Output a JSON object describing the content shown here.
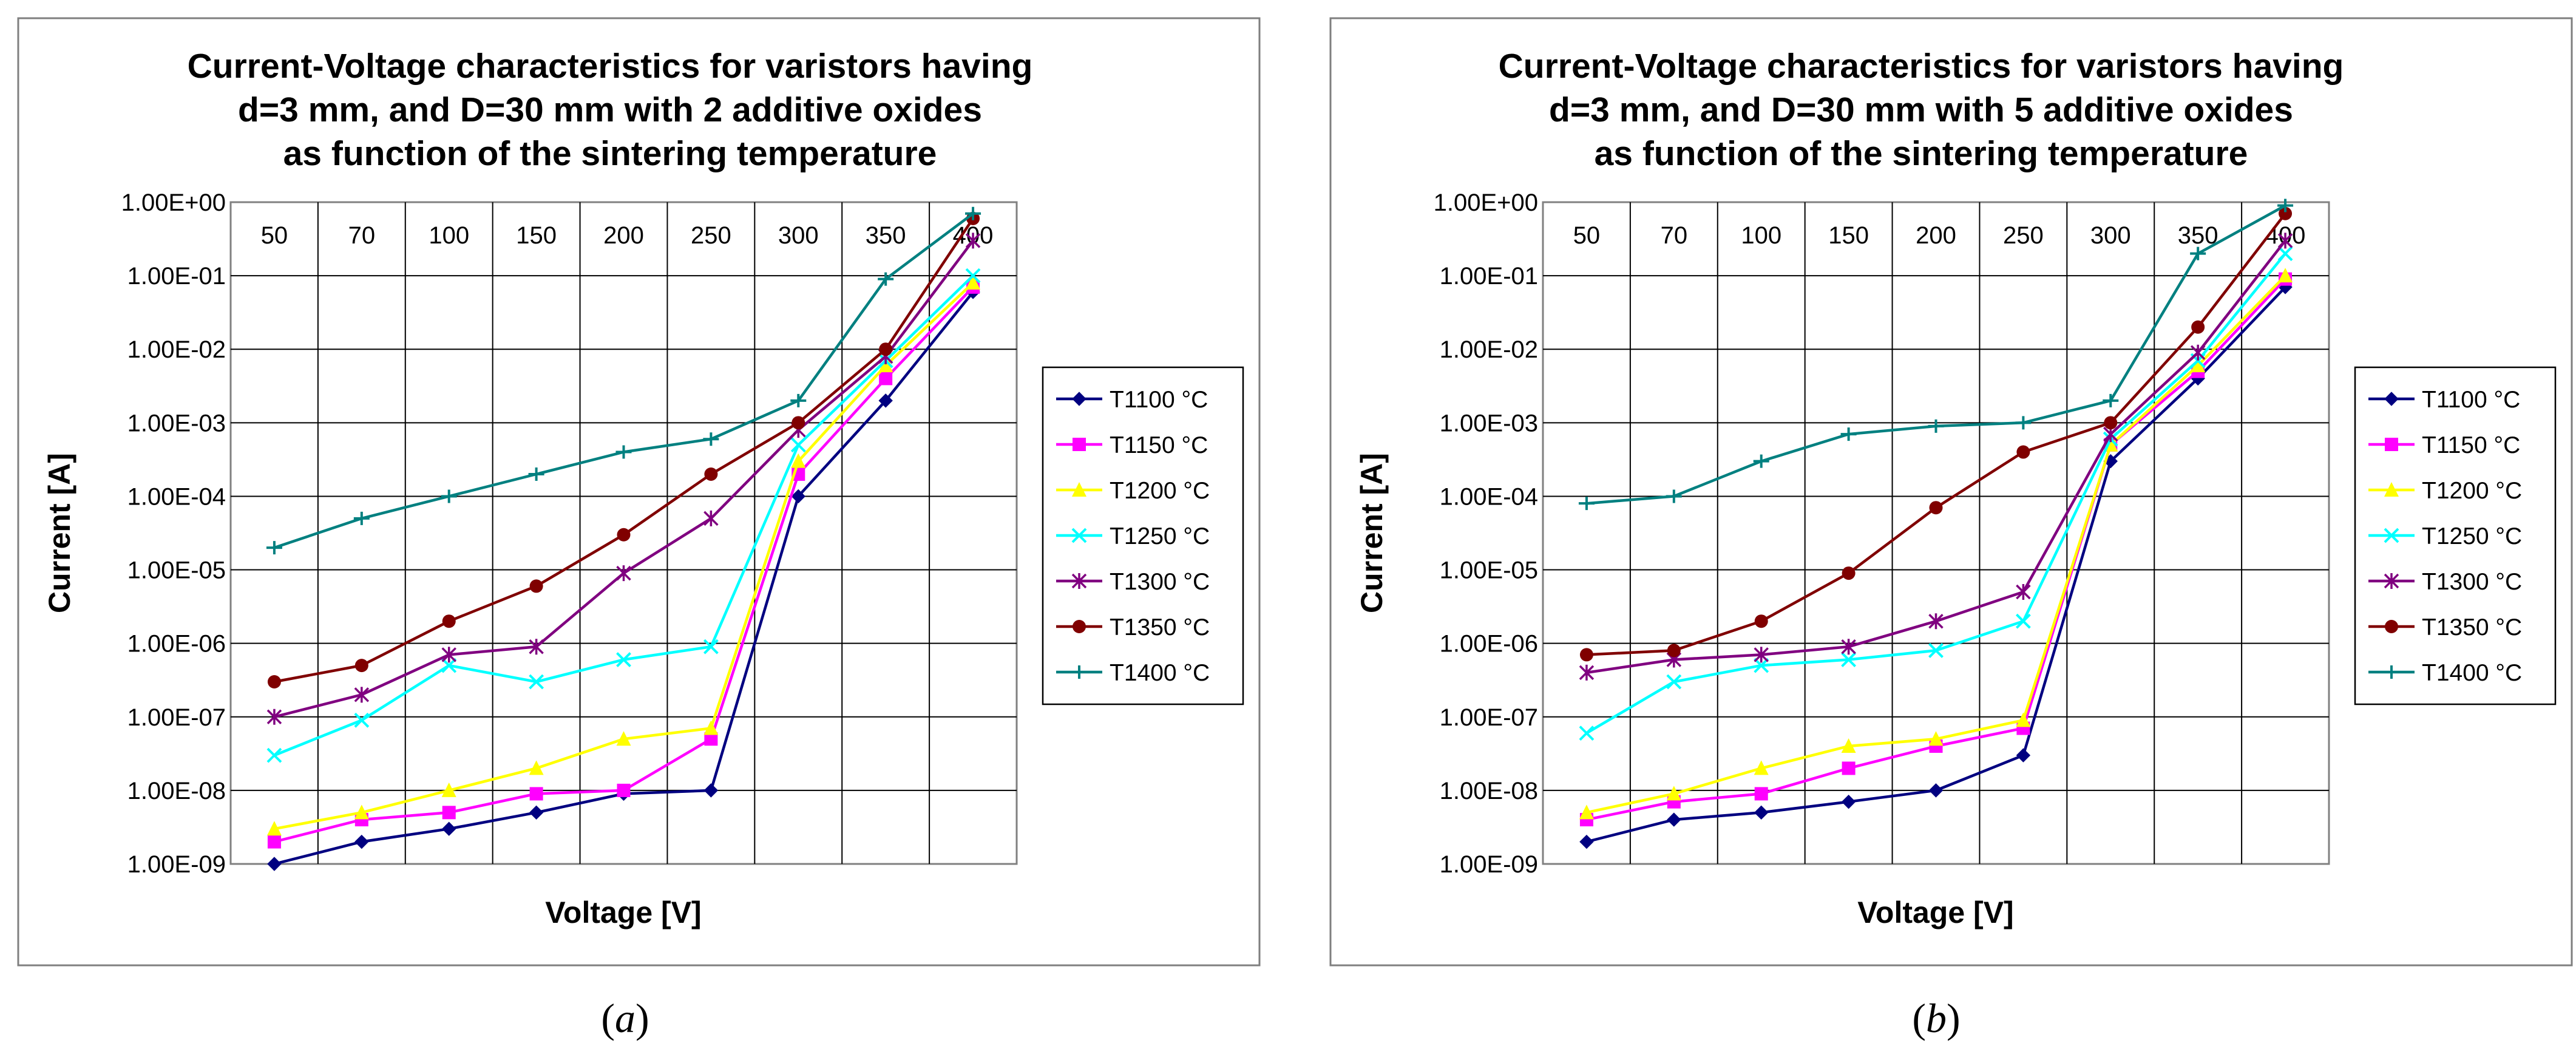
{
  "panels": [
    {
      "caption_open": "(",
      "caption_letter": "a",
      "caption_close": ")",
      "chart_data": {
        "type": "line",
        "y_scale": "log",
        "title_lines": [
          "Current-Voltage characteristics for varistors having",
          "d=3 mm, and D=30 mm with 2 additive oxides",
          "as function of the sintering temperature"
        ],
        "xlabel": "Voltage [V]",
        "ylabel": "Current [A]",
        "categories": [
          "50",
          "70",
          "100",
          "150",
          "200",
          "250",
          "300",
          "350",
          "400"
        ],
        "ytick_labels": [
          "1.00E+00",
          "1.00E-01",
          "1.00E-02",
          "1.00E-03",
          "1.00E-04",
          "1.00E-05",
          "1.00E-06",
          "1.00E-07",
          "1.00E-08",
          "1.00E-09"
        ],
        "ylim": [
          1e-09,
          1
        ],
        "legend_position": "right",
        "series": [
          {
            "name": "T1100 °C",
            "color": "#000080",
            "marker": "diamond",
            "values": [
              1e-09,
              2e-09,
              3e-09,
              5e-09,
              9e-09,
              1e-08,
              0.0001,
              0.002,
              0.06
            ]
          },
          {
            "name": "T1150 °C",
            "color": "#FF00FF",
            "marker": "square",
            "values": [
              2e-09,
              4e-09,
              5e-09,
              9e-09,
              1e-08,
              5e-08,
              0.0002,
              0.004,
              0.07
            ]
          },
          {
            "name": "T1200 °C",
            "color": "#FFFF00",
            "marker": "triangle",
            "values": [
              3e-09,
              5e-09,
              1e-08,
              2e-08,
              5e-08,
              7e-08,
              0.0003,
              0.006,
              0.08
            ]
          },
          {
            "name": "T1250 °C",
            "color": "#00FFFF",
            "marker": "x",
            "values": [
              3e-08,
              9e-08,
              5e-07,
              3e-07,
              6e-07,
              9e-07,
              0.0005,
              0.007,
              0.1
            ]
          },
          {
            "name": "T1300 °C",
            "color": "#800080",
            "marker": "star",
            "values": [
              1e-07,
              2e-07,
              7e-07,
              9e-07,
              9e-06,
              5e-05,
              0.0008,
              0.008,
              0.3
            ]
          },
          {
            "name": "T1350 °C",
            "color": "#800000",
            "marker": "circle",
            "values": [
              3e-07,
              5e-07,
              2e-06,
              6e-06,
              3e-05,
              0.0002,
              0.001,
              0.01,
              0.6
            ]
          },
          {
            "name": "T1400 °C",
            "color": "#008080",
            "marker": "plus",
            "values": [
              2e-05,
              5e-05,
              0.0001,
              0.0002,
              0.0004,
              0.0006,
              0.002,
              0.09,
              0.7
            ]
          }
        ]
      }
    },
    {
      "caption_open": "(",
      "caption_letter": "b",
      "caption_close": ")",
      "chart_data": {
        "type": "line",
        "y_scale": "log",
        "title_lines": [
          "Current-Voltage characteristics for varistors having",
          "d=3 mm, and D=30 mm with 5 additive oxides",
          "as function of the sintering temperature"
        ],
        "xlabel": "Voltage [V]",
        "ylabel": "Current [A]",
        "categories": [
          "50",
          "70",
          "100",
          "150",
          "200",
          "250",
          "300",
          "350",
          "400"
        ],
        "ytick_labels": [
          "1.00E+00",
          "1.00E-01",
          "1.00E-02",
          "1.00E-03",
          "1.00E-04",
          "1.00E-05",
          "1.00E-06",
          "1.00E-07",
          "1.00E-08",
          "1.00E-09"
        ],
        "ylim": [
          1e-09,
          1
        ],
        "legend_position": "right",
        "series": [
          {
            "name": "T1100 °C",
            "color": "#000080",
            "marker": "diamond",
            "values": [
              2e-09,
              4e-09,
              5e-09,
              7e-09,
              1e-08,
              3e-08,
              0.0003,
              0.004,
              0.07
            ]
          },
          {
            "name": "T1150 °C",
            "color": "#FF00FF",
            "marker": "square",
            "values": [
              4e-09,
              7e-09,
              9e-09,
              2e-08,
              4e-08,
              7e-08,
              0.0005,
              0.005,
              0.09
            ]
          },
          {
            "name": "T1200 °C",
            "color": "#FFFF00",
            "marker": "triangle",
            "values": [
              5e-09,
              9e-09,
              2e-08,
              4e-08,
              5e-08,
              9e-08,
              0.0005,
              0.006,
              0.1
            ]
          },
          {
            "name": "T1250 °C",
            "color": "#00FFFF",
            "marker": "x",
            "values": [
              6e-08,
              3e-07,
              5e-07,
              6e-07,
              8e-07,
              2e-06,
              0.0006,
              0.007,
              0.2
            ]
          },
          {
            "name": "T1300 °C",
            "color": "#800080",
            "marker": "star",
            "values": [
              4e-07,
              6e-07,
              7e-07,
              9e-07,
              2e-06,
              5e-06,
              0.0007,
              0.009,
              0.3
            ]
          },
          {
            "name": "T1350 °C",
            "color": "#800000",
            "marker": "circle",
            "values": [
              7e-07,
              8e-07,
              2e-06,
              9e-06,
              7e-05,
              0.0004,
              0.001,
              0.02,
              0.7
            ]
          },
          {
            "name": "T1400 °C",
            "color": "#008080",
            "marker": "plus",
            "values": [
              8e-05,
              0.0001,
              0.0003,
              0.0007,
              0.0009,
              0.001,
              0.002,
              0.2,
              0.9
            ]
          }
        ]
      }
    }
  ]
}
